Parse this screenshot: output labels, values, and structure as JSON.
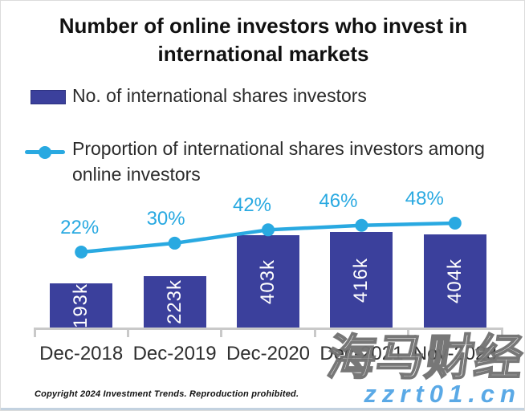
{
  "title": "Number of online investors who invest in international markets",
  "legend": {
    "bars_label": "No. of international shares investors",
    "line_label": "Proportion of international shares investors among online investors"
  },
  "chart_data": {
    "type": "bar",
    "categories": [
      "Dec-2018",
      "Dec-2019",
      "Dec-2020",
      "Dec-2021",
      "Nov-2023"
    ],
    "series": [
      {
        "name": "No. of international shares investors",
        "type": "bar",
        "values": [
          193000,
          223000,
          403000,
          416000,
          404000
        ],
        "labels": [
          "193k",
          "223k",
          "403k",
          "416k",
          "404k"
        ],
        "color": "#3b409c"
      },
      {
        "name": "Proportion of international shares investors among online investors",
        "type": "line",
        "values": [
          22,
          30,
          42,
          46,
          48
        ],
        "labels": [
          "22%",
          "30%",
          "42%",
          "46%",
          "48%"
        ],
        "unit": "%",
        "color": "#29a9e1"
      }
    ],
    "title": "Number of online investors who invest in international markets",
    "xlabel": "",
    "ylabel": "",
    "grid": false,
    "legend_position": "top-left",
    "value_labels_inside_bars": true,
    "percent_labels_above_line": true
  },
  "footer": {
    "copyright": "Copyright 2024 Investment Trends. Reproduction prohibited."
  },
  "watermark": {
    "cjk": "海马财经",
    "url": "zzrt01.cn"
  },
  "colors": {
    "bar": "#3b409c",
    "line": "#29a9e1",
    "percent_text": "#29a9e1",
    "axis": "#c9c9c9",
    "title_text": "#111111",
    "body_text": "#2b2b2b",
    "bar_value_text": "#ffffff",
    "watermark_url_blue": "#5aa9e6"
  }
}
